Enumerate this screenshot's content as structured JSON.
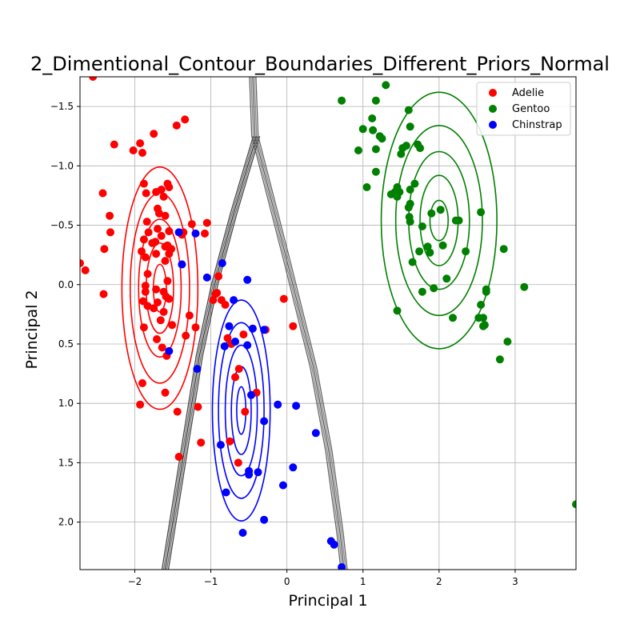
{
  "chart_data": {
    "type": "scatter",
    "title": "2_Dimentional_Contour_Boundaries_Different_Priors_Normal",
    "xlabel": "Principal 1",
    "ylabel": "Principal 2",
    "xlim": [
      -2.72,
      3.8
    ],
    "ylim": [
      2.4,
      -1.75
    ],
    "y_inverted": true,
    "grid": true,
    "legend_position": "top-right",
    "x_ticks": [
      -2,
      -1,
      0,
      1,
      2,
      3
    ],
    "y_ticks": [
      -1.5,
      -1.0,
      -0.5,
      0.0,
      0.5,
      1.0,
      1.5,
      2.0
    ],
    "x_tick_labels": [
      "−2",
      "−1",
      "0",
      "1",
      "2",
      "3"
    ],
    "y_tick_labels": [
      "−1.5",
      "−1.0",
      "−0.5",
      "0.0",
      "0.5",
      "1.0",
      "1.5",
      "2.0"
    ],
    "series": [
      {
        "name": "Adelie",
        "color": "#ff0000",
        "points": [
          [
            -2.55,
            -1.75
          ],
          [
            -2.72,
            -0.18
          ],
          [
            -2.65,
            -0.12
          ],
          [
            -2.42,
            -0.77
          ],
          [
            -2.4,
            -0.3
          ],
          [
            -2.41,
            0.08
          ],
          [
            -2.33,
            -0.58
          ],
          [
            -2.32,
            -0.44
          ],
          [
            -2.27,
            -1.18
          ],
          [
            -2.02,
            -1.13
          ],
          [
            -1.93,
            -1.19
          ],
          [
            -1.9,
            -1.11
          ],
          [
            -1.88,
            -0.85
          ],
          [
            -1.85,
            -0.77
          ],
          [
            -1.84,
            -0.53
          ],
          [
            -1.82,
            -0.44
          ],
          [
            -1.88,
            -0.38
          ],
          [
            -1.91,
            -0.28
          ],
          [
            -1.86,
            -0.23
          ],
          [
            -1.83,
            -0.09
          ],
          [
            -1.86,
            0.01
          ],
          [
            -1.86,
            0.06
          ],
          [
            -1.89,
            0.14
          ],
          [
            -1.83,
            0.18
          ],
          [
            -1.88,
            0.36
          ],
          [
            -1.9,
            0.83
          ],
          [
            -1.93,
            1.01
          ],
          [
            -1.75,
            -1.27
          ],
          [
            -1.72,
            -0.78
          ],
          [
            -1.7,
            -0.64
          ],
          [
            -1.68,
            -0.6
          ],
          [
            -1.7,
            -0.47
          ],
          [
            -1.73,
            -0.36
          ],
          [
            -1.77,
            -0.35
          ],
          [
            -1.72,
            -0.26
          ],
          [
            -1.72,
            0.04
          ],
          [
            -1.7,
            0.15
          ],
          [
            -1.75,
            0.2
          ],
          [
            -1.66,
            0.3
          ],
          [
            -1.65,
            -0.8
          ],
          [
            -1.62,
            -0.74
          ],
          [
            -1.6,
            -0.58
          ],
          [
            -1.65,
            -0.41
          ],
          [
            -1.6,
            -0.32
          ],
          [
            -1.57,
            -0.33
          ],
          [
            -1.55,
            -0.45
          ],
          [
            -1.52,
            -0.3
          ],
          [
            -1.55,
            -0.26
          ],
          [
            -1.6,
            -0.2
          ],
          [
            -1.57,
            -0.03
          ],
          [
            -1.62,
            0.06
          ],
          [
            -1.59,
            0.1
          ],
          [
            -1.55,
            0.12
          ],
          [
            -1.62,
            0.23
          ],
          [
            -1.64,
            0.53
          ],
          [
            -1.71,
            0.46
          ],
          [
            -1.58,
            0.6
          ],
          [
            -1.6,
            0.91
          ],
          [
            -1.51,
            0.34
          ],
          [
            -1.55,
            -0.82
          ],
          [
            -1.57,
            -0.85
          ],
          [
            -1.45,
            -1.34
          ],
          [
            -1.34,
            -1.39
          ],
          [
            -1.38,
            -0.42
          ],
          [
            -1.36,
            -0.44
          ],
          [
            -1.38,
            -0.17
          ],
          [
            -1.25,
            -0.51
          ],
          [
            -1.05,
            -0.52
          ],
          [
            -1.33,
            0.43
          ],
          [
            -1.28,
            0.26
          ],
          [
            -1.2,
            0.36
          ],
          [
            -1.44,
            1.07
          ],
          [
            -1.42,
            1.45
          ],
          [
            -1.17,
            1.03
          ],
          [
            -1.13,
            1.33
          ],
          [
            -1.08,
            -0.43
          ],
          [
            -0.97,
            0.13
          ],
          [
            -0.94,
            0.08
          ],
          [
            -0.92,
            0.07
          ],
          [
            -0.9,
            -0.07
          ],
          [
            -0.86,
            0.13
          ],
          [
            -0.81,
            0.17
          ],
          [
            -0.78,
            0.45
          ],
          [
            -0.73,
            0.5
          ],
          [
            -0.68,
            0.78
          ],
          [
            -0.63,
            0.71
          ],
          [
            -0.57,
            0.42
          ],
          [
            -0.55,
            1.07
          ],
          [
            -0.75,
            1.32
          ],
          [
            -0.64,
            1.5
          ],
          [
            -0.4,
            0.91
          ],
          [
            -0.28,
            0.38
          ],
          [
            -0.04,
            0.12
          ],
          [
            0.08,
            0.35
          ]
        ]
      },
      {
        "name": "Gentoo",
        "color": "#008000",
        "points": [
          [
            0.72,
            -1.55
          ],
          [
            0.94,
            -1.13
          ],
          [
            1.0,
            -1.31
          ],
          [
            1.05,
            -0.82
          ],
          [
            1.12,
            -1.4
          ],
          [
            1.13,
            -1.3
          ],
          [
            1.17,
            -1.55
          ],
          [
            1.17,
            -1.14
          ],
          [
            1.17,
            -0.95
          ],
          [
            1.22,
            -1.25
          ],
          [
            1.25,
            -1.23
          ],
          [
            1.3,
            -1.68
          ],
          [
            1.37,
            -0.76
          ],
          [
            1.42,
            -0.78
          ],
          [
            1.45,
            -0.74
          ],
          [
            1.45,
            -0.82
          ],
          [
            1.48,
            -0.78
          ],
          [
            1.52,
            -1.15
          ],
          [
            1.5,
            -1.1
          ],
          [
            1.57,
            -1.17
          ],
          [
            1.6,
            -1.47
          ],
          [
            1.62,
            -1.33
          ],
          [
            1.62,
            -0.68
          ],
          [
            1.61,
            -0.57
          ],
          [
            1.62,
            -0.53
          ],
          [
            1.6,
            -0.65
          ],
          [
            1.62,
            -0.8
          ],
          [
            1.68,
            -0.85
          ],
          [
            1.72,
            -1.18
          ],
          [
            1.75,
            -1.15
          ],
          [
            1.74,
            -0.28
          ],
          [
            1.78,
            -0.49
          ],
          [
            1.65,
            -0.19
          ],
          [
            1.88,
            -0.27
          ],
          [
            1.9,
            -0.6
          ],
          [
            1.85,
            -0.32
          ],
          [
            1.78,
            0.06
          ],
          [
            1.93,
            0.03
          ],
          [
            2.05,
            -0.33
          ],
          [
            2.02,
            -0.63
          ],
          [
            2.1,
            -0.05
          ],
          [
            2.22,
            -0.54
          ],
          [
            2.26,
            -0.54
          ],
          [
            2.18,
            0.28
          ],
          [
            2.35,
            -0.28
          ],
          [
            2.55,
            -0.61
          ],
          [
            2.52,
            0.28
          ],
          [
            2.55,
            0.17
          ],
          [
            2.58,
            0.28
          ],
          [
            2.58,
            0.35
          ],
          [
            2.62,
            0.06
          ],
          [
            2.62,
            0.04
          ],
          [
            2.6,
            0.34
          ],
          [
            2.8,
            0.63
          ],
          [
            2.85,
            -0.3
          ],
          [
            2.9,
            0.48
          ],
          [
            3.12,
            0.02
          ],
          [
            3.8,
            1.85
          ],
          [
            1.45,
            0.22
          ]
        ]
      },
      {
        "name": "Chinstrap",
        "color": "#0000ff",
        "points": [
          [
            -1.55,
            0.56
          ],
          [
            -1.42,
            -0.44
          ],
          [
            -1.38,
            -0.17
          ],
          [
            -1.2,
            -0.43
          ],
          [
            -1.18,
            0.71
          ],
          [
            -1.05,
            -0.06
          ],
          [
            -0.85,
            -0.18
          ],
          [
            -0.82,
            0.52
          ],
          [
            -0.76,
            0.35
          ],
          [
            -0.7,
            0.13
          ],
          [
            -0.68,
            0.48
          ],
          [
            -0.8,
            1.75
          ],
          [
            -0.87,
            1.35
          ],
          [
            -0.52,
            -0.04
          ],
          [
            -0.52,
            0.51
          ],
          [
            -0.47,
            0.93
          ],
          [
            -0.45,
            0.37
          ],
          [
            -0.5,
            1.57
          ],
          [
            -0.5,
            1.6
          ],
          [
            -0.38,
            1.58
          ],
          [
            -0.3,
            1.15
          ],
          [
            -0.3,
            0.38
          ],
          [
            -0.12,
            1.01
          ],
          [
            -0.05,
            1.69
          ],
          [
            -0.58,
            2.09
          ],
          [
            -0.3,
            1.98
          ],
          [
            0.08,
            1.54
          ],
          [
            0.12,
            1.02
          ],
          [
            0.38,
            1.25
          ],
          [
            0.58,
            2.16
          ],
          [
            0.62,
            2.19
          ],
          [
            0.72,
            2.38
          ]
        ]
      }
    ],
    "contours": [
      {
        "name": "Adelie",
        "color": "#ff0000",
        "center": [
          -1.67,
          0.03
        ],
        "radii": [
          [
            0.085,
            0.2
          ],
          [
            0.18,
            0.38
          ],
          [
            0.28,
            0.58
          ],
          [
            0.39,
            0.8
          ],
          [
            0.5,
            1.02
          ]
        ]
      },
      {
        "name": "Gentoo",
        "color": "#008000",
        "center": [
          2.0,
          -0.54
        ],
        "radii": [
          [
            0.12,
            0.17
          ],
          [
            0.25,
            0.38
          ],
          [
            0.4,
            0.58
          ],
          [
            0.57,
            0.8
          ],
          [
            0.76,
            1.08
          ]
        ]
      },
      {
        "name": "Chinstrap",
        "color": "#0000ff",
        "center": [
          -0.6,
          1.06
        ],
        "radii": [
          [
            0.06,
            0.2
          ],
          [
            0.13,
            0.37
          ],
          [
            0.21,
            0.55
          ],
          [
            0.3,
            0.74
          ],
          [
            0.38,
            0.93
          ]
        ]
      }
    ],
    "boundaries": [
      {
        "name": "decision-boundary-left",
        "color": "#333333",
        "points": [
          [
            -0.4,
            -1.25
          ],
          [
            -0.7,
            -0.6
          ],
          [
            -0.95,
            0.0
          ],
          [
            -1.15,
            0.6
          ],
          [
            -1.3,
            1.2
          ],
          [
            -1.45,
            1.8
          ],
          [
            -1.6,
            2.4
          ]
        ]
      },
      {
        "name": "decision-boundary-right",
        "color": "#555555",
        "points": [
          [
            -0.45,
            -1.75
          ],
          [
            -0.42,
            -1.25
          ],
          [
            0.0,
            -0.2
          ],
          [
            0.35,
            0.7
          ],
          [
            0.55,
            1.4
          ],
          [
            0.7,
            2.1
          ],
          [
            0.75,
            2.4
          ]
        ]
      }
    ]
  }
}
